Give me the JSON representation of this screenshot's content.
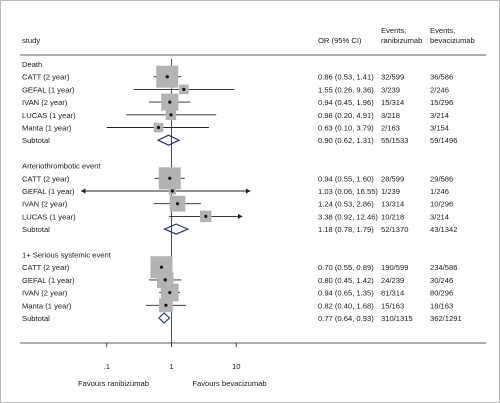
{
  "chart_data": {
    "type": "forest",
    "x_scale": "log",
    "xlim": [
      0.01,
      100
    ],
    "x_ticks": [
      ".1",
      "1",
      "10"
    ],
    "x_tick_values": [
      0.1,
      1,
      10
    ],
    "reference_line": 1,
    "grid": false,
    "headers": {
      "study": "study",
      "or": "OR (95% CI)",
      "events_ran": "Events,\nranibizumab",
      "events_bev": "Events,\nbevacizumab"
    },
    "x_caption_left": "Favours ranibizumab",
    "x_caption_right": "Favours bevacizumab",
    "groups": [
      {
        "name": "Death",
        "studies": [
          {
            "study": "CATT (2 year)",
            "or": 0.86,
            "lo": 0.53,
            "hi": 1.41,
            "or_text": "0.86 (0.53, 1.41)",
            "events_ran": "32/599",
            "events_bev": "36/586",
            "weight": 1.0
          },
          {
            "study": "GEFAL (1 year)",
            "or": 1.55,
            "lo": 0.26,
            "hi": 9.36,
            "or_text": "1.55 (0.26, 9.36)",
            "events_ran": "3/239",
            "events_bev": "2/246",
            "weight": 0.12
          },
          {
            "study": "IVAN (2 year)",
            "or": 0.94,
            "lo": 0.45,
            "hi": 1.96,
            "or_text": "0.94 (0.45, 1.96)",
            "events_ran": "15/314",
            "events_bev": "15/296",
            "weight": 0.55
          },
          {
            "study": "LUCAS (1 year)",
            "or": 0.98,
            "lo": 0.2,
            "hi": 4.91,
            "or_text": "0.98 (0.20, 4.91)",
            "events_ran": "3/218",
            "events_bev": "3/214",
            "weight": 0.15
          },
          {
            "study": "Manta (1 year)",
            "or": 0.63,
            "lo": 0.1,
            "hi": 3.79,
            "or_text": "0.63 (0.10, 3.79)",
            "events_ran": "2/163",
            "events_bev": "3/154",
            "weight": 0.12
          }
        ],
        "subtotal": {
          "label": "Subtotal",
          "or": 0.9,
          "lo": 0.62,
          "hi": 1.31,
          "or_text": "0.90 (0.62, 1.31)",
          "events_ran": "55/1533",
          "events_bev": "59/1496"
        }
      },
      {
        "name": "Arteriothrombotic event",
        "studies": [
          {
            "study": "CATT (2 year)",
            "or": 0.94,
            "lo": 0.55,
            "hi": 1.6,
            "or_text": "0.94 (0.55, 1.60)",
            "events_ran": "28/599",
            "events_bev": "29/586",
            "weight": 1.0
          },
          {
            "study": "GEFAL (1 year)",
            "or": 1.03,
            "lo": 0.06,
            "hi": 16.55,
            "or_text": "1.03 (0.06, 16.55)",
            "events_ran": "1/239",
            "events_bev": "1/246",
            "weight": 0.05,
            "arrow_left": true,
            "arrow_right": true
          },
          {
            "study": "IVAN (2 year)",
            "or": 1.24,
            "lo": 0.53,
            "hi": 2.86,
            "or_text": "1.24 (0.53, 2.86)",
            "events_ran": "13/314",
            "events_bev": "10/296",
            "weight": 0.45
          },
          {
            "study": "LUCAS (1 year)",
            "or": 3.38,
            "lo": 0.92,
            "hi": 12.46,
            "or_text": "3.38 (0.92, 12.46)",
            "events_ran": "10/218",
            "events_bev": "3/214",
            "weight": 0.2,
            "arrow_right": true
          }
        ],
        "subtotal": {
          "label": "Subtotal",
          "or": 1.18,
          "lo": 0.78,
          "hi": 1.79,
          "or_text": "1.18 (0.78, 1.79)",
          "events_ran": "52/1370",
          "events_bev": "43/1342"
        }
      },
      {
        "name": "1+ Serious systemic event",
        "studies": [
          {
            "study": "CATT (2 year)",
            "or": 0.7,
            "lo": 0.55,
            "hi": 0.89,
            "or_text": "0.70 (0.55, 0.89)",
            "events_ran": "190/599",
            "events_bev": "234/586",
            "weight": 1.0
          },
          {
            "study": "GEFAL (1 year)",
            "or": 0.8,
            "lo": 0.45,
            "hi": 1.42,
            "or_text": "0.80 (0.45, 1.42)",
            "events_ran": "24/239",
            "events_bev": "30/246",
            "weight": 0.5
          },
          {
            "study": "IVAN (2 year)",
            "or": 0.94,
            "lo": 0.65,
            "hi": 1.35,
            "or_text": "0.94 (0.65, 1.35)",
            "events_ran": "81/314",
            "events_bev": "80/296",
            "weight": 0.6
          },
          {
            "study": "Manta (1 year)",
            "or": 0.82,
            "lo": 0.4,
            "hi": 1.68,
            "or_text": "0.82 (0.40, 1.68)",
            "events_ran": "15/163",
            "events_bev": "18/163",
            "weight": 0.32
          }
        ],
        "subtotal": {
          "label": "Subtotal",
          "or": 0.77,
          "lo": 0.64,
          "hi": 0.93,
          "or_text": "0.77 (0.64, 0.93)",
          "events_ran": "310/1315",
          "events_bev": "362/1291"
        }
      }
    ]
  },
  "colors": {
    "frame": "#b9b9b9",
    "rule": "#222222",
    "box": "#b3b3b3",
    "diamond": "#1f3c8a",
    "text": "#1a1a1a"
  }
}
